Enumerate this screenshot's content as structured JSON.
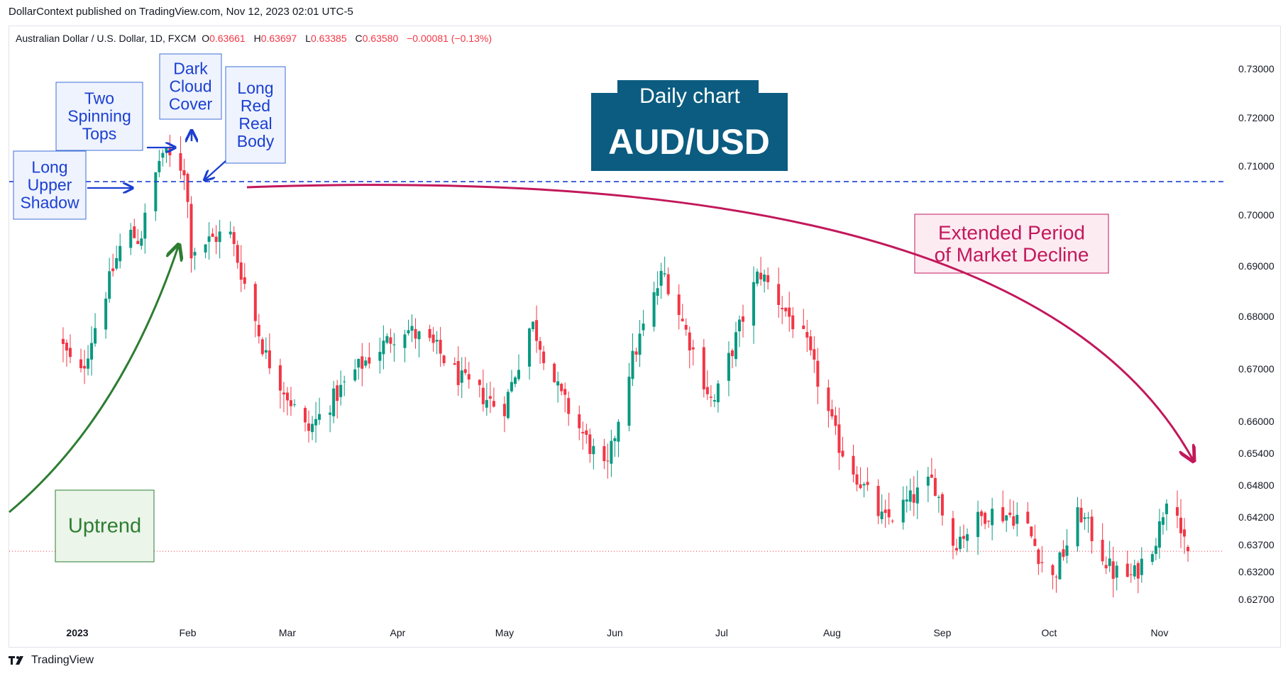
{
  "publisher": "DollarContext published on TradingView.com, Nov 12, 2023 02:01 UTC-5",
  "legend": {
    "symbol": "Australian Dollar / U.S. Dollar, 1D, FXCM",
    "o_label": "O",
    "o": "0.63661",
    "h_label": "H",
    "h": "0.63697",
    "l_label": "L",
    "l": "0.63385",
    "c_label": "C",
    "c": "0.63580",
    "change": "−0.00081 (−0.13%)"
  },
  "footer": {
    "brand": "TradingView"
  },
  "colors": {
    "up": "#089981",
    "down": "#f23645",
    "title_box": "#0b5c80",
    "annotation_blue": "#1b3fd1",
    "uptrend_green": "#2e7d32",
    "decline": "#c2185b"
  },
  "chart_data": {
    "type": "candlestick",
    "instrument": "AUD/USD",
    "title": "Daily chart",
    "subtitle": "AUD/USD",
    "x_ticks": [
      "2023",
      "Feb",
      "Mar",
      "Apr",
      "May",
      "Jun",
      "Jul",
      "Aug",
      "Sep",
      "Oct",
      "Nov"
    ],
    "y_ticks": [
      "0.73000",
      "0.72000",
      "0.71000",
      "0.70000",
      "0.69000",
      "0.68000",
      "0.67000",
      "0.66000",
      "0.65400",
      "0.64800",
      "0.64200",
      "0.63700",
      "0.63200",
      "0.62700"
    ],
    "y_axis_side": "right",
    "ylim": [
      0.623,
      0.735
    ],
    "close_line": 0.6358,
    "resistance_level": 0.7068,
    "annotations": [
      {
        "id": "long-upper-shadow",
        "text": "Long\nUpper\nShadow"
      },
      {
        "id": "two-spinning-tops",
        "text": "Two\nSpinning\nTops"
      },
      {
        "id": "dark-cloud-cover",
        "text": "Dark\nCloud\nCover"
      },
      {
        "id": "long-red-real-body",
        "text": "Long\nRed\nReal\nBody"
      },
      {
        "id": "uptrend",
        "text": "Uptrend"
      },
      {
        "id": "extended-decline",
        "text": "Extended Period\nof Market Decline"
      }
    ],
    "waypoints": [
      {
        "date": "2022-12-28",
        "price": 0.676
      },
      {
        "date": "2023-01-03",
        "price": 0.668
      },
      {
        "date": "2023-01-10",
        "price": 0.684
      },
      {
        "date": "2023-01-16",
        "price": 0.697
      },
      {
        "date": "2023-01-20",
        "price": 0.695
      },
      {
        "date": "2023-01-26",
        "price": 0.713
      },
      {
        "date": "2023-02-02",
        "price": 0.709
      },
      {
        "date": "2023-02-03",
        "price": 0.693
      },
      {
        "date": "2023-02-14",
        "price": 0.697
      },
      {
        "date": "2023-02-24",
        "price": 0.673
      },
      {
        "date": "2023-03-08",
        "price": 0.658
      },
      {
        "date": "2023-03-22",
        "price": 0.67
      },
      {
        "date": "2023-04-04",
        "price": 0.678
      },
      {
        "date": "2023-04-13",
        "price": 0.674
      },
      {
        "date": "2023-04-20",
        "price": 0.668
      },
      {
        "date": "2023-05-02",
        "price": 0.662
      },
      {
        "date": "2023-05-10",
        "price": 0.679
      },
      {
        "date": "2023-05-18",
        "price": 0.665
      },
      {
        "date": "2023-05-31",
        "price": 0.65
      },
      {
        "date": "2023-06-06",
        "price": 0.669
      },
      {
        "date": "2023-06-16",
        "price": 0.689
      },
      {
        "date": "2023-06-30",
        "price": 0.663
      },
      {
        "date": "2023-07-13",
        "price": 0.689
      },
      {
        "date": "2023-07-26",
        "price": 0.675
      },
      {
        "date": "2023-08-04",
        "price": 0.656
      },
      {
        "date": "2023-08-17",
        "price": 0.641
      },
      {
        "date": "2023-08-31",
        "price": 0.649
      },
      {
        "date": "2023-09-05",
        "price": 0.637
      },
      {
        "date": "2023-09-15",
        "price": 0.643
      },
      {
        "date": "2023-09-25",
        "price": 0.642
      },
      {
        "date": "2023-10-03",
        "price": 0.63
      },
      {
        "date": "2023-10-11",
        "price": 0.643
      },
      {
        "date": "2023-10-20",
        "price": 0.632
      },
      {
        "date": "2023-10-26",
        "price": 0.631
      },
      {
        "date": "2023-11-02",
        "price": 0.639
      },
      {
        "date": "2023-11-06",
        "price": 0.651
      },
      {
        "date": "2023-11-09",
        "price": 0.6366
      }
    ],
    "last_bar": {
      "open": 0.63661,
      "high": 0.63697,
      "low": 0.63385,
      "close": 0.6358
    }
  }
}
